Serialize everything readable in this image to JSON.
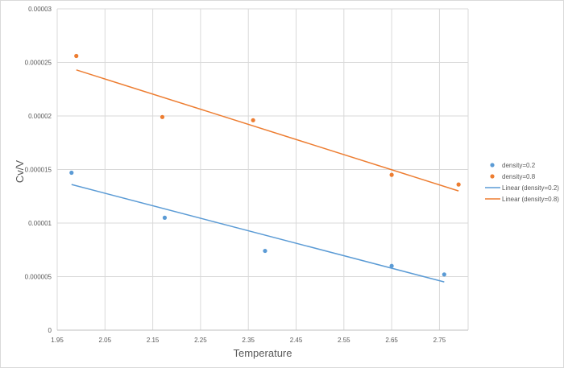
{
  "chart_data": {
    "type": "scatter",
    "title": "",
    "xlabel": "Temperature",
    "ylabel": "Cv/V",
    "xlim": [
      1.95,
      2.81
    ],
    "ylim": [
      0,
      3e-05
    ],
    "x_ticks": [
      "1.95",
      "2.05",
      "2.15",
      "2.25",
      "2.35",
      "2.45",
      "2.55",
      "2.65",
      "2.75"
    ],
    "x_tick_values": [
      1.95,
      2.05,
      2.15,
      2.25,
      2.35,
      2.45,
      2.55,
      2.65,
      2.75
    ],
    "y_ticks": [
      "0",
      "0.000005",
      "0.00001",
      "0.000015",
      "0.00002",
      "0.000025",
      "0.00003"
    ],
    "y_tick_values": [
      0,
      5e-06,
      1e-05,
      1.5e-05,
      2e-05,
      2.5e-05,
      3e-05
    ],
    "grid": true,
    "legend_position": "right",
    "series": [
      {
        "name": "density=0.2",
        "kind": "points",
        "color": "#5b9bd5",
        "points": [
          [
            1.98,
            1.47e-05
          ],
          [
            2.175,
            1.05e-05
          ],
          [
            2.385,
            7.4e-06
          ],
          [
            2.65,
            6e-06
          ],
          [
            2.76,
            5.2e-06
          ]
        ]
      },
      {
        "name": "density=0.8",
        "kind": "points",
        "color": "#ed7d31",
        "points": [
          [
            1.99,
            2.56e-05
          ],
          [
            2.17,
            1.99e-05
          ],
          [
            2.36,
            1.96e-05
          ],
          [
            2.65,
            1.45e-05
          ],
          [
            2.79,
            1.36e-05
          ]
        ]
      },
      {
        "name": "Linear (density=0.2)",
        "kind": "trendline",
        "color": "#5b9bd5",
        "points": [
          [
            1.98,
            1.36e-05
          ],
          [
            2.76,
            4.5e-06
          ]
        ]
      },
      {
        "name": "Linear (density=0.8)",
        "kind": "trendline",
        "color": "#ed7d31",
        "points": [
          [
            1.99,
            2.43e-05
          ],
          [
            2.79,
            1.3e-05
          ]
        ]
      }
    ]
  }
}
